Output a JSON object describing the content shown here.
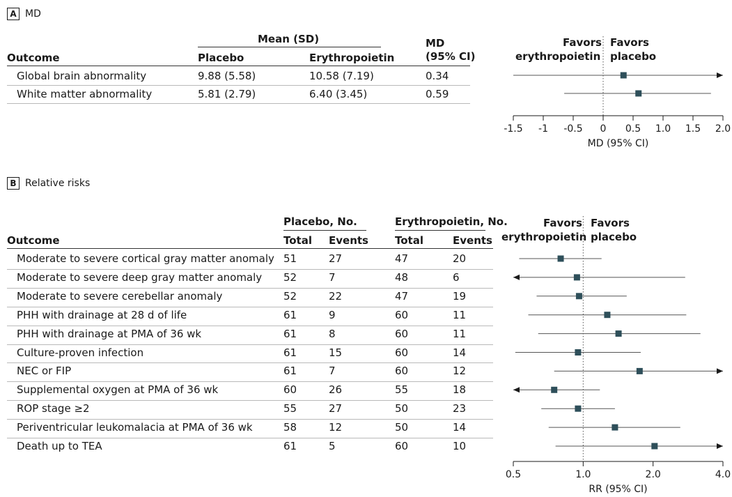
{
  "panelA": {
    "tag": "A",
    "title": "MD",
    "header": {
      "outcome": "Outcome",
      "mean_group": "Mean (SD)",
      "placebo": "Placebo",
      "epo": "Erythropoietin",
      "md_line1": "MD",
      "md_line2": "(95% CI)"
    },
    "rows": [
      {
        "outcome": "Global brain abnormality",
        "placebo": "9.88 (5.58)",
        "epo": "10.58 (7.19)",
        "md": "0.34"
      },
      {
        "outcome": "White matter abnormality",
        "placebo": "5.81 (2.79)",
        "epo": "6.40 (3.45)",
        "md": "0.59"
      }
    ],
    "favors_left_1": "Favors",
    "favors_left_2": "erythropoietin",
    "favors_right_1": "Favors",
    "favors_right_2": "placebo"
  },
  "panelB": {
    "tag": "B",
    "title": "Relative risks",
    "header": {
      "outcome": "Outcome",
      "placebo_group": "Placebo, No.",
      "epo_group": "Erythropoietin, No.",
      "total": "Total",
      "events": "Events"
    },
    "rows": [
      {
        "outcome": "Moderate to severe cortical gray matter anomaly",
        "p_total": "51",
        "p_events": "27",
        "e_total": "47",
        "e_events": "20"
      },
      {
        "outcome": "Moderate to severe deep gray matter anomaly",
        "p_total": "52",
        "p_events": "7",
        "e_total": "48",
        "e_events": "6"
      },
      {
        "outcome": "Moderate to severe cerebellar anomaly",
        "p_total": "52",
        "p_events": "22",
        "e_total": "47",
        "e_events": "19"
      },
      {
        "outcome": "PHH with drainage at 28 d of life",
        "p_total": "61",
        "p_events": "9",
        "e_total": "60",
        "e_events": "11"
      },
      {
        "outcome": "PHH with drainage at PMA of 36 wk",
        "p_total": "61",
        "p_events": "8",
        "e_total": "60",
        "e_events": "11"
      },
      {
        "outcome": "Culture-proven infection",
        "p_total": "61",
        "p_events": "15",
        "e_total": "60",
        "e_events": "14"
      },
      {
        "outcome": "NEC or FIP",
        "p_total": "61",
        "p_events": "7",
        "e_total": "60",
        "e_events": "12"
      },
      {
        "outcome": "Supplemental oxygen at PMA of 36 wk",
        "p_total": "60",
        "p_events": "26",
        "e_total": "55",
        "e_events": "18"
      },
      {
        "outcome": "ROP stage ≥2",
        "p_total": "55",
        "p_events": "27",
        "e_total": "50",
        "e_events": "23"
      },
      {
        "outcome": "Periventricular leukomalacia at PMA of 36 wk",
        "p_total": "58",
        "p_events": "12",
        "e_total": "50",
        "e_events": "14"
      },
      {
        "outcome": "Death up to TEA",
        "p_total": "61",
        "p_events": "5",
        "e_total": "60",
        "e_events": "10"
      }
    ],
    "favors_left_1": "Favors",
    "favors_left_2": "erythropoietin",
    "favors_right_1": "Favors",
    "favors_right_2": "placebo"
  },
  "chart_data": [
    {
      "type": "forest",
      "xlabel": "MD (95% CI)",
      "xlim": [
        -1.5,
        2.0
      ],
      "scale": "linear",
      "ticks": [
        -1.5,
        -1,
        -0.5,
        0,
        0.5,
        1.0,
        1.5,
        2.0
      ],
      "tick_labels": [
        "-1.5",
        "-1",
        "-0.5",
        "0",
        "0.5",
        "1.0",
        "1.5",
        "2.0"
      ],
      "null_value": 0,
      "categories": [
        "Global brain abnormality",
        "White matter abnormality"
      ],
      "points": [
        {
          "est": 0.34,
          "lo": -1.5,
          "hi": 2.0,
          "arrow_left": false,
          "arrow_right": true
        },
        {
          "est": 0.59,
          "lo": -0.65,
          "hi": 1.8,
          "arrow_left": false,
          "arrow_right": false
        }
      ],
      "colors": {
        "marker": "#2e4f5a",
        "line": "#555555",
        "null_line": "#555555"
      }
    },
    {
      "type": "forest",
      "xlabel": "RR (95% CI)",
      "xlim": [
        0.5,
        4.0
      ],
      "scale": "log",
      "ticks": [
        0.5,
        1.0,
        2.0,
        4.0
      ],
      "tick_labels": [
        "0.5",
        "1.0",
        "2.0",
        "4.0"
      ],
      "null_value": 1.0,
      "categories": [
        "Moderate to severe cortical gray matter anomaly",
        "Moderate to severe deep gray matter anomaly",
        "Moderate to severe cerebellar anomaly",
        "PHH with drainage at 28 d of life",
        "PHH with drainage at PMA of 36 wk",
        "Culture-proven infection",
        "NEC or FIP",
        "Supplemental oxygen at PMA of 36 wk",
        "ROP stage ≥2",
        "Periventricular leukomalacia at PMA of 36 wk",
        "Death up to TEA"
      ],
      "points": [
        {
          "est": 0.8,
          "lo": 0.53,
          "hi": 1.2,
          "arrow_left": false,
          "arrow_right": false
        },
        {
          "est": 0.94,
          "lo": 0.5,
          "hi": 2.75,
          "arrow_left": true,
          "arrow_right": false
        },
        {
          "est": 0.96,
          "lo": 0.63,
          "hi": 1.54,
          "arrow_left": false,
          "arrow_right": false
        },
        {
          "est": 1.27,
          "lo": 0.58,
          "hi": 2.78,
          "arrow_left": false,
          "arrow_right": false
        },
        {
          "est": 1.42,
          "lo": 0.64,
          "hi": 3.2,
          "arrow_left": false,
          "arrow_right": false
        },
        {
          "est": 0.95,
          "lo": 0.51,
          "hi": 1.77,
          "arrow_left": false,
          "arrow_right": false
        },
        {
          "est": 1.75,
          "lo": 0.75,
          "hi": 4.0,
          "arrow_left": false,
          "arrow_right": true
        },
        {
          "est": 0.75,
          "lo": 0.5,
          "hi": 1.18,
          "arrow_left": true,
          "arrow_right": false
        },
        {
          "est": 0.95,
          "lo": 0.66,
          "hi": 1.37,
          "arrow_left": false,
          "arrow_right": false
        },
        {
          "est": 1.37,
          "lo": 0.71,
          "hi": 2.62,
          "arrow_left": false,
          "arrow_right": false
        },
        {
          "est": 2.03,
          "lo": 0.76,
          "hi": 4.0,
          "arrow_left": false,
          "arrow_right": true
        }
      ],
      "colors": {
        "marker": "#2e4f5a",
        "line": "#555555",
        "null_line": "#555555"
      }
    }
  ]
}
